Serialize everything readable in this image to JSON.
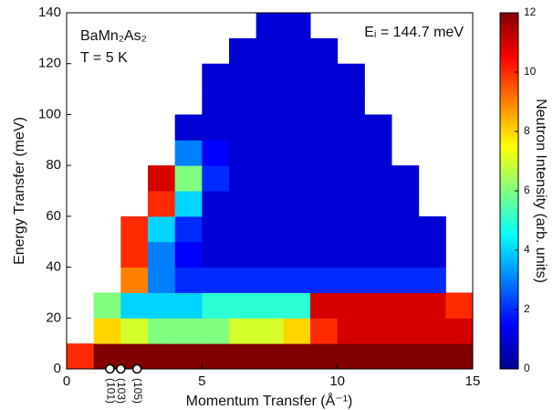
{
  "chart_data": {
    "type": "heatmap",
    "colormap": "jet",
    "x_label": "Momentum Transfer (Å⁻¹)",
    "y_label": "Energy Transfer (meV)",
    "colorbar_label": "Neutron Intensity (arb. units)",
    "annotations": [
      "BaMn₂As₂",
      "T = 5 K",
      "Eᵢ = 144.7 meV"
    ],
    "peaks": [
      {
        "label": "(101)",
        "x": 1.6
      },
      {
        "label": "(103)",
        "x": 2.0
      },
      {
        "label": "(105)",
        "x": 2.6
      }
    ],
    "x_bins": [
      0,
      1,
      2,
      3,
      4,
      5,
      6,
      7,
      8,
      9,
      10,
      11,
      12,
      13,
      14,
      15
    ],
    "y_bins": [
      0,
      10,
      20,
      30,
      40,
      50,
      60,
      70,
      80,
      90,
      100,
      110,
      120,
      130,
      140
    ],
    "values": [
      [
        10,
        12,
        12,
        12,
        12,
        12,
        12,
        12,
        12,
        12,
        12,
        12,
        12,
        12,
        12
      ],
      [
        null,
        8,
        7,
        6,
        6,
        6,
        7,
        7,
        8,
        10,
        11,
        11,
        11,
        11,
        11
      ],
      [
        null,
        6,
        4,
        4,
        4,
        5,
        5,
        5,
        5,
        11,
        11,
        11,
        11,
        11,
        10
      ],
      [
        null,
        null,
        9,
        3,
        2,
        2,
        2,
        2,
        2,
        2,
        2,
        2,
        2,
        2,
        null
      ],
      [
        null,
        null,
        10,
        3,
        1.5,
        1,
        1,
        1,
        1,
        1,
        1,
        1,
        1,
        1,
        null
      ],
      [
        null,
        null,
        10,
        4,
        2,
        1,
        1,
        1,
        1,
        1,
        1,
        1,
        1,
        1,
        null
      ],
      [
        null,
        null,
        null,
        10,
        4,
        1,
        1,
        1,
        1,
        1,
        1,
        1,
        1,
        null,
        null
      ],
      [
        null,
        null,
        null,
        11,
        6,
        2,
        1,
        1,
        1,
        1,
        1,
        1,
        1,
        null,
        null
      ],
      [
        null,
        null,
        null,
        null,
        3,
        1.5,
        1,
        1,
        1,
        1,
        1,
        1,
        null,
        null,
        null
      ],
      [
        null,
        null,
        null,
        null,
        1,
        1,
        1,
        1,
        1,
        1,
        1,
        1,
        null,
        null,
        null
      ],
      [
        null,
        null,
        null,
        null,
        null,
        1,
        1,
        1,
        1,
        1,
        1,
        null,
        null,
        null,
        null
      ],
      [
        null,
        null,
        null,
        null,
        null,
        1,
        1,
        1,
        1,
        1,
        1,
        null,
        null,
        null,
        null
      ],
      [
        null,
        null,
        null,
        null,
        null,
        null,
        1,
        1,
        1,
        1,
        null,
        null,
        null,
        null,
        null
      ],
      [
        null,
        null,
        null,
        null,
        null,
        null,
        null,
        1,
        1,
        null,
        null,
        null,
        null,
        null,
        null
      ]
    ],
    "xlim": [
      0,
      15
    ],
    "xticks": [
      0,
      5,
      10,
      15
    ],
    "ylim": [
      0,
      140
    ],
    "yticks": [
      0,
      20,
      40,
      60,
      80,
      100,
      120,
      140
    ],
    "zlim": [
      0,
      12
    ],
    "zticks": [
      0,
      2,
      4,
      6,
      8,
      10,
      12
    ]
  }
}
